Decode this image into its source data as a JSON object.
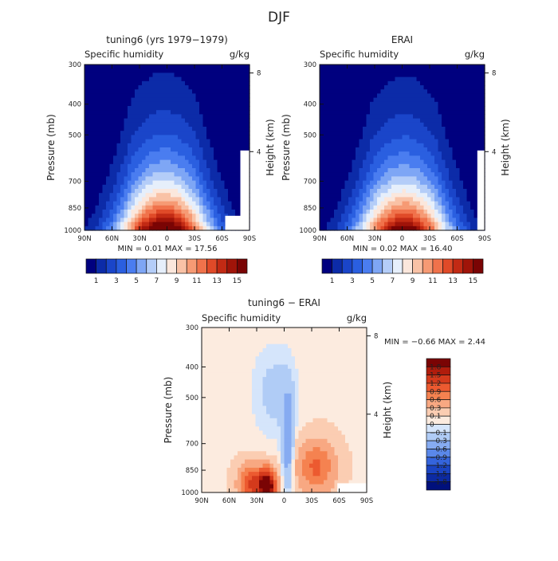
{
  "figure_title": "DJF",
  "chart_data": [
    {
      "type": "heatmap",
      "title": "tuning6 (yrs 1979−1979)",
      "field_label": "Specific humidity",
      "units": "g/kg",
      "xlabel": "",
      "ylabel": "Pressure (mb)",
      "y2label": "Height (km)",
      "x_ticks": [
        "90N",
        "60N",
        "30N",
        "0",
        "30S",
        "60S",
        "90S"
      ],
      "x_values": [
        90,
        60,
        30,
        0,
        -30,
        -60,
        -90
      ],
      "y_ticks": [
        300,
        400,
        500,
        700,
        850,
        1000
      ],
      "y_scale": "log",
      "ylim": [
        1000,
        300
      ],
      "y2_ticks": [
        8,
        4
      ],
      "stats_label": "MIN =   0.01   MAX =  17.56",
      "min": 0.01,
      "max": 17.56,
      "peak": {
        "lat": 3,
        "value": 17.56
      },
      "colorbar_labels": [
        "1",
        "3",
        "5",
        "7",
        "9",
        "11",
        "13",
        "15"
      ],
      "colorbar_colors": [
        "#00007f",
        "#0c2ba8",
        "#1a45c9",
        "#2a5fe0",
        "#4a7df0",
        "#7ea6f5",
        "#b4cdf8",
        "#e6effb",
        "#fbe7dc",
        "#f9c2a6",
        "#f69a74",
        "#f0724b",
        "#e04a28",
        "#c22a14",
        "#a01409",
        "#7a0404"
      ]
    },
    {
      "type": "heatmap",
      "title": "ERAI",
      "field_label": "Specific humidity",
      "units": "g/kg",
      "xlabel": "",
      "ylabel": "Pressure (mb)",
      "y2label": "Height (km)",
      "x_ticks": [
        "90N",
        "60N",
        "30N",
        "0",
        "30S",
        "60S",
        "90S"
      ],
      "x_values": [
        90,
        60,
        30,
        0,
        -30,
        -60,
        -90
      ],
      "y_ticks": [
        300,
        400,
        500,
        700,
        850,
        1000
      ],
      "y_scale": "log",
      "ylim": [
        1000,
        300
      ],
      "y2_ticks": [
        8,
        4
      ],
      "stats_label": "MIN =   0.02   MAX =  16.40",
      "min": 0.02,
      "max": 16.4,
      "peak": {
        "lat": -2,
        "value": 16.4
      },
      "colorbar_labels": [
        "1",
        "3",
        "5",
        "7",
        "9",
        "11",
        "13",
        "15"
      ],
      "colorbar_colors": [
        "#00007f",
        "#0c2ba8",
        "#1a45c9",
        "#2a5fe0",
        "#4a7df0",
        "#7ea6f5",
        "#b4cdf8",
        "#e6effb",
        "#fbe7dc",
        "#f9c2a6",
        "#f69a74",
        "#f0724b",
        "#e04a28",
        "#c22a14",
        "#a01409",
        "#7a0404"
      ]
    },
    {
      "type": "heatmap",
      "title": "tuning6 − ERAI",
      "field_label": "Specific humidity",
      "units": "g/kg",
      "xlabel": "",
      "ylabel": "Pressure (mb)",
      "y2label": "Height (km)",
      "x_ticks": [
        "90N",
        "60N",
        "30N",
        "0",
        "30S",
        "60S",
        "90S"
      ],
      "x_values": [
        90,
        60,
        30,
        0,
        -30,
        -60,
        -90
      ],
      "y_ticks": [
        300,
        400,
        500,
        700,
        850,
        1000
      ],
      "y_scale": "log",
      "ylim": [
        1000,
        300
      ],
      "y2_ticks": [
        8,
        4
      ],
      "stats_label": "MIN =  −0.66   MAX =   2.44",
      "min": -0.66,
      "max": 2.44,
      "colorbar_labels": [
        "1.8",
        "1.5",
        "1.2",
        "0.9",
        "0.6",
        "0.3",
        "0.1",
        "0",
        "−0.1",
        "−0.3",
        "−0.6",
        "−0.9",
        "−1.2",
        "−1.5",
        "−1.8"
      ],
      "colorbar_colors": [
        "#7a0404",
        "#b01c0c",
        "#d43a1c",
        "#ec5a30",
        "#f58250",
        "#f8a882",
        "#fbcdb2",
        "#fcebdf",
        "#d5e5fb",
        "#b0ccf6",
        "#86abf1",
        "#5a88ea",
        "#3464dc",
        "#1a44c2",
        "#0c2aa2",
        "#00107c"
      ]
    }
  ]
}
